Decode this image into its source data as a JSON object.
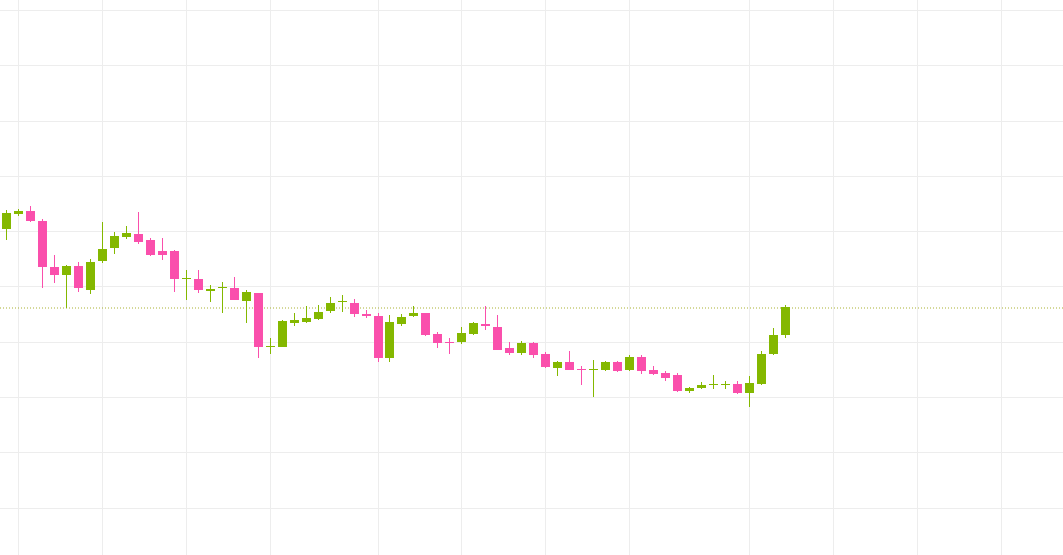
{
  "chart_data": {
    "type": "candlestick",
    "x": [
      0,
      1,
      2,
      3,
      4,
      5,
      6,
      7,
      8,
      9,
      10,
      11,
      12,
      13,
      14,
      15,
      16,
      17,
      18,
      19,
      20,
      21,
      22,
      23,
      24,
      25,
      26,
      27,
      28,
      29,
      30,
      31,
      32,
      33,
      34,
      35,
      36,
      37,
      38,
      39,
      40,
      41,
      42,
      43,
      44,
      45,
      46,
      47,
      48,
      49,
      50,
      51,
      52,
      53,
      54,
      55,
      56,
      57,
      58,
      59,
      60,
      61,
      62,
      63,
      64,
      65
    ],
    "open": [
      326,
      341,
      344,
      334,
      288,
      280,
      289,
      265,
      294,
      307,
      318,
      321,
      315,
      304,
      304,
      276,
      276,
      264,
      267,
      267,
      254,
      262,
      208,
      208,
      232,
      233,
      236,
      244,
      253,
      252,
      241,
      239,
      197,
      231,
      239,
      242,
      221,
      213,
      213,
      221,
      231,
      228,
      207,
      202,
      212,
      201,
      187,
      193,
      186,
      185,
      185,
      193,
      185,
      198,
      185,
      182,
      180,
      164,
      167,
      170,
      170,
      171,
      162,
      171,
      201,
      220
    ],
    "high": [
      345,
      346,
      349,
      336,
      300,
      290,
      293,
      296,
      333,
      323,
      329,
      343,
      317,
      317,
      305,
      285,
      285,
      270,
      273,
      278,
      265,
      262,
      217,
      235,
      242,
      249,
      250,
      258,
      260,
      256,
      245,
      242,
      240,
      241,
      249,
      242,
      223,
      217,
      228,
      233,
      249,
      240,
      213,
      214,
      213,
      203,
      194,
      204,
      189,
      195,
      194,
      194,
      200,
      200,
      189,
      184,
      182,
      168,
      173,
      180,
      174,
      174,
      179,
      204,
      227,
      250
    ],
    "low": [
      315,
      339,
      333,
      267,
      272,
      247,
      263,
      261,
      292,
      301,
      316,
      311,
      299,
      295,
      263,
      255,
      262,
      253,
      242,
      255,
      232,
      197,
      201,
      208,
      229,
      232,
      235,
      242,
      243,
      238,
      237,
      193,
      193,
      229,
      238,
      219,
      207,
      201,
      211,
      220,
      225,
      205,
      200,
      200,
      197,
      187,
      179,
      185,
      170,
      158,
      184,
      183,
      184,
      181,
      180,
      174,
      163,
      162,
      166,
      166,
      166,
      161,
      148,
      170,
      200,
      217
    ],
    "close": [
      342,
      344,
      334,
      288,
      280,
      289,
      267,
      293,
      306,
      319,
      322,
      313,
      300,
      300,
      276,
      277,
      265,
      266,
      268,
      255,
      263,
      208,
      209,
      234,
      235,
      237,
      243,
      252,
      254,
      241,
      239,
      197,
      233,
      238,
      242,
      220,
      212,
      212,
      222,
      232,
      229,
      205,
      202,
      212,
      200,
      188,
      193,
      185,
      185,
      186,
      193,
      184,
      198,
      184,
      181,
      177,
      164,
      167,
      170,
      171,
      171,
      162,
      172,
      201,
      220,
      248
    ],
    "up_color": "#84b800",
    "down_color": "#fa4fac",
    "price_line": 247,
    "price_line_color": "#a8b030",
    "xlim": [
      -0.5,
      88.2
    ],
    "xticks": [
      1,
      8,
      15,
      22,
      31,
      38,
      45,
      52,
      62,
      69,
      76,
      83
    ],
    "ylim": [
      0,
      555
    ],
    "yticks": [
      47,
      103,
      158,
      213,
      269,
      324,
      379,
      434,
      490,
      545
    ],
    "grid": true
  }
}
